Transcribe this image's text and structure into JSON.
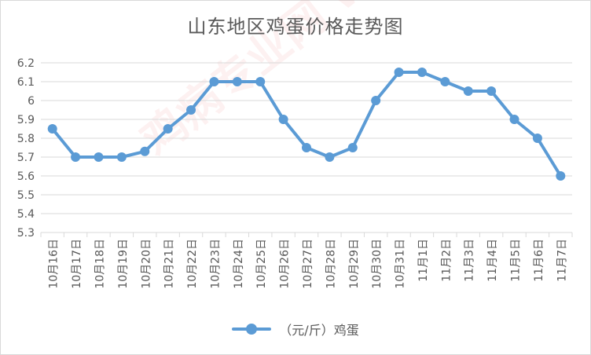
{
  "colors": {
    "series": "#5b9bd5",
    "gridline": "#d9d9d9",
    "axis_text": "#595959"
  },
  "legend": {
    "marker_icon": "line-with-circle-icon"
  },
  "watermark": {
    "text": "鸡病专业网 www.jbzyw.com"
  },
  "chart_data": {
    "type": "line",
    "title": "山东地区鸡蛋价格走势图",
    "xlabel": "",
    "ylabel": "",
    "ylim": [
      5.3,
      6.2
    ],
    "yticks": [
      "6.2",
      "6.1",
      "6",
      "5.9",
      "5.8",
      "5.7",
      "5.6",
      "5.5",
      "5.4",
      "5.3"
    ],
    "grid": true,
    "legend_position": "bottom",
    "categories": [
      "10月16日",
      "10月17日",
      "10月18日",
      "10月19日",
      "10月20日",
      "10月21日",
      "10月22日",
      "10月23日",
      "10月24日",
      "10月25日",
      "10月26日",
      "10月27日",
      "10月28日",
      "10月29日",
      "10月30日",
      "10月31日",
      "11月1日",
      "11月2日",
      "11月3日",
      "11月4日",
      "11月5日",
      "11月6日",
      "11月7日"
    ],
    "series": [
      {
        "name": "（元/斤）鸡蛋",
        "values": [
          5.85,
          5.7,
          5.7,
          5.7,
          5.73,
          5.85,
          5.95,
          6.1,
          6.1,
          6.1,
          5.9,
          5.75,
          5.7,
          5.75,
          6.0,
          6.15,
          6.15,
          6.1,
          6.05,
          6.05,
          5.9,
          5.8,
          5.6
        ]
      }
    ]
  }
}
